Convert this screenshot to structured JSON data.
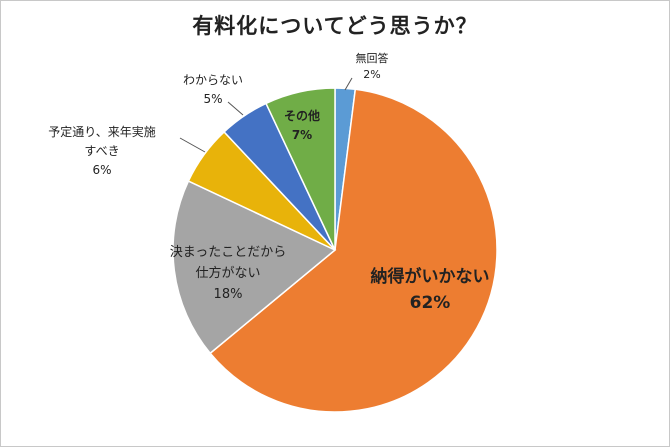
{
  "chart_data": {
    "type": "pie",
    "title": "有料化についてどう思うか？",
    "start_angle_deg": 0,
    "direction": "clockwise",
    "slices": [
      {
        "label": "無回答",
        "value": 2,
        "value_label": "2%",
        "color": "#5b9bd5"
      },
      {
        "label": "納得がいかない",
        "value": 62,
        "value_label": "62%",
        "color": "#ed7d31"
      },
      {
        "label": "決まったことだから\n仕方がない",
        "value": 18,
        "value_label": "18%",
        "color": "#a5a5a5"
      },
      {
        "label": "予定通り、来年実施\nすべき",
        "value": 6,
        "value_label": "6%",
        "color": "#e8b30a"
      },
      {
        "label": "わからない",
        "value": 5,
        "value_label": "5%",
        "color": "#4472c4"
      },
      {
        "label": "その他",
        "value": 7,
        "value_label": "7%",
        "color": "#70ad47"
      }
    ]
  }
}
